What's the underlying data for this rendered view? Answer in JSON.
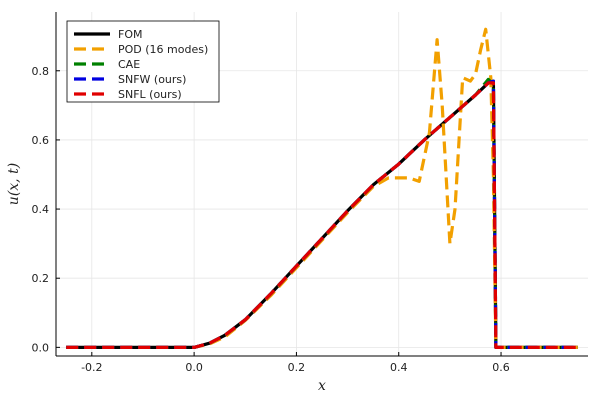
{
  "chart_data": {
    "type": "line",
    "xlabel": "x",
    "ylabel": "u(x, t)",
    "xlim": [
      -0.27,
      0.77
    ],
    "ylim": [
      -0.025,
      0.97
    ],
    "xticks": [
      -0.2,
      0.0,
      0.2,
      0.4,
      0.6
    ],
    "yticks": [
      0.0,
      0.2,
      0.4,
      0.6,
      0.8
    ],
    "xtick_labels": [
      "-0.2",
      "0.0",
      "0.2",
      "0.4",
      "0.6"
    ],
    "ytick_labels": [
      "0.0",
      "0.2",
      "0.4",
      "0.6",
      "0.8"
    ],
    "grid": true,
    "legend_position": "top-left",
    "series": [
      {
        "name": "FOM",
        "color": "#000000",
        "dashed": false,
        "x": [
          -0.25,
          0.0,
          0.03,
          0.06,
          0.1,
          0.15,
          0.2,
          0.25,
          0.3,
          0.35,
          0.4,
          0.45,
          0.5,
          0.55,
          0.575,
          0.585,
          0.59,
          0.6,
          0.75
        ],
        "y": [
          0.0,
          0.0,
          0.012,
          0.035,
          0.08,
          0.155,
          0.235,
          0.315,
          0.395,
          0.47,
          0.53,
          0.6,
          0.665,
          0.73,
          0.765,
          0.77,
          0.0,
          0.0,
          0.0
        ]
      },
      {
        "name": "POD (16 modes)",
        "color": "#f2a000",
        "dashed": true,
        "x": [
          -0.25,
          0.0,
          0.03,
          0.06,
          0.1,
          0.15,
          0.2,
          0.25,
          0.3,
          0.35,
          0.38,
          0.4,
          0.42,
          0.44,
          0.46,
          0.475,
          0.485,
          0.5,
          0.51,
          0.525,
          0.54,
          0.55,
          0.56,
          0.57,
          0.58,
          0.585,
          0.59,
          0.6,
          0.75
        ],
        "y": [
          0.0,
          0.0,
          0.01,
          0.03,
          0.078,
          0.15,
          0.23,
          0.31,
          0.39,
          0.465,
          0.49,
          0.49,
          0.49,
          0.48,
          0.62,
          0.89,
          0.7,
          0.3,
          0.4,
          0.78,
          0.77,
          0.79,
          0.86,
          0.92,
          0.78,
          0.5,
          0.0,
          0.0,
          0.0
        ]
      },
      {
        "name": "CAE",
        "color": "#008000",
        "dashed": true,
        "x": [
          -0.25,
          0.0,
          0.03,
          0.06,
          0.1,
          0.15,
          0.2,
          0.25,
          0.3,
          0.35,
          0.4,
          0.45,
          0.5,
          0.55,
          0.575,
          0.585,
          0.59,
          0.6,
          0.75
        ],
        "y": [
          0.0,
          0.0,
          0.012,
          0.035,
          0.08,
          0.155,
          0.235,
          0.315,
          0.395,
          0.47,
          0.53,
          0.6,
          0.665,
          0.73,
          0.775,
          0.76,
          0.0,
          0.0,
          0.0
        ]
      },
      {
        "name": "SNFW (ours)",
        "color": "#0000e0",
        "dashed": true,
        "x": [
          -0.25,
          0.0,
          0.03,
          0.06,
          0.1,
          0.15,
          0.2,
          0.25,
          0.3,
          0.35,
          0.4,
          0.45,
          0.5,
          0.55,
          0.575,
          0.585,
          0.59,
          0.6,
          0.75
        ],
        "y": [
          0.0,
          0.0,
          0.012,
          0.035,
          0.08,
          0.155,
          0.235,
          0.315,
          0.395,
          0.47,
          0.53,
          0.6,
          0.665,
          0.73,
          0.765,
          0.77,
          0.0,
          0.0,
          0.0
        ]
      },
      {
        "name": "SNFL (ours)",
        "color": "#e00000",
        "dashed": true,
        "x": [
          -0.25,
          0.0,
          0.03,
          0.06,
          0.1,
          0.15,
          0.2,
          0.25,
          0.3,
          0.35,
          0.4,
          0.45,
          0.5,
          0.55,
          0.575,
          0.585,
          0.59,
          0.6,
          0.75
        ],
        "y": [
          0.0,
          0.0,
          0.012,
          0.035,
          0.08,
          0.155,
          0.235,
          0.315,
          0.395,
          0.47,
          0.53,
          0.6,
          0.665,
          0.73,
          0.765,
          0.765,
          0.0,
          0.0,
          0.0
        ]
      }
    ]
  }
}
